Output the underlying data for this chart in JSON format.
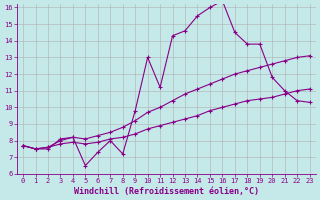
{
  "xlabel": "Windchill (Refroidissement éolien,°C)",
  "background_color": "#c5e8e8",
  "line_color": "#880088",
  "grid_color": "#b0b0b0",
  "xlim": [
    -0.5,
    23.5
  ],
  "ylim": [
    6,
    16.2
  ],
  "xticks": [
    0,
    1,
    2,
    3,
    4,
    5,
    6,
    7,
    8,
    9,
    10,
    11,
    12,
    13,
    14,
    15,
    16,
    17,
    18,
    19,
    20,
    21,
    22,
    23
  ],
  "yticks": [
    6,
    7,
    8,
    9,
    10,
    11,
    12,
    13,
    14,
    15,
    16
  ],
  "line1_x": [
    0,
    1,
    2,
    3,
    4,
    5,
    6,
    7,
    8,
    9,
    10,
    11,
    12,
    13,
    14,
    15,
    16,
    17,
    18,
    19,
    20,
    21,
    22,
    23
  ],
  "line1_y": [
    7.7,
    7.5,
    7.5,
    8.1,
    8.2,
    6.5,
    7.3,
    8.0,
    7.2,
    9.8,
    13.0,
    11.2,
    14.3,
    14.6,
    15.5,
    16.0,
    16.4,
    14.5,
    13.8,
    13.8,
    11.8,
    11.0,
    10.4,
    10.3
  ],
  "line2_x": [
    0,
    1,
    2,
    3,
    4,
    5,
    6,
    7,
    8,
    9,
    10,
    11,
    12,
    13,
    14,
    15,
    16,
    17,
    18,
    19,
    20,
    21,
    22,
    23
  ],
  "line2_y": [
    7.7,
    7.5,
    7.6,
    8.0,
    8.2,
    8.1,
    8.3,
    8.5,
    8.8,
    9.2,
    9.7,
    10.0,
    10.4,
    10.8,
    11.1,
    11.4,
    11.7,
    12.0,
    12.2,
    12.4,
    12.6,
    12.8,
    13.0,
    13.1
  ],
  "line3_x": [
    0,
    1,
    2,
    3,
    4,
    5,
    6,
    7,
    8,
    9,
    10,
    11,
    12,
    13,
    14,
    15,
    16,
    17,
    18,
    19,
    20,
    21,
    22,
    23
  ],
  "line3_y": [
    7.7,
    7.5,
    7.6,
    7.8,
    7.9,
    7.8,
    7.9,
    8.1,
    8.2,
    8.4,
    8.7,
    8.9,
    9.1,
    9.3,
    9.5,
    9.8,
    10.0,
    10.2,
    10.4,
    10.5,
    10.6,
    10.8,
    11.0,
    11.1
  ],
  "marker": "+",
  "markersize": 3.5,
  "linewidth": 0.8,
  "tick_fontsize": 5.0,
  "label_fontsize": 6.0
}
